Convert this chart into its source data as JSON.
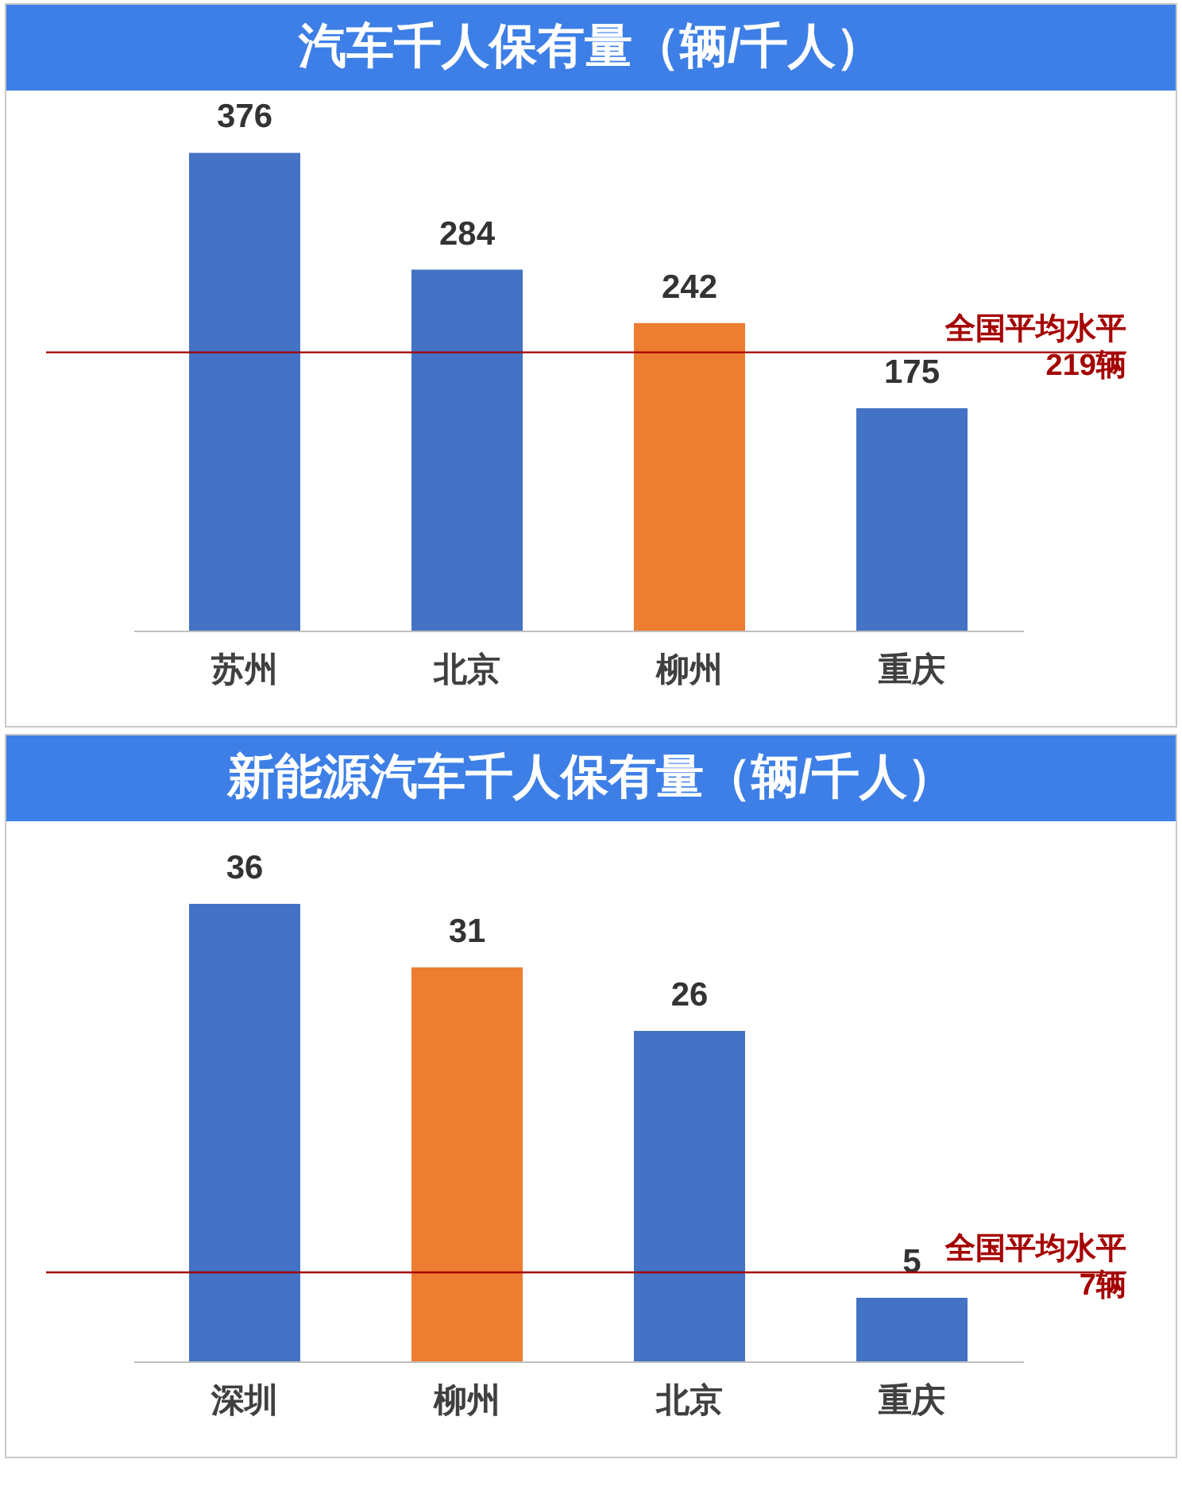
{
  "chart_data": [
    {
      "type": "bar",
      "title": "汽车千人保有量（辆/千人）",
      "categories": [
        "苏州",
        "北京",
        "柳州",
        "重庆"
      ],
      "values": [
        376,
        284,
        242,
        175
      ],
      "colors": [
        "#4472c4",
        "#4472c4",
        "#ed7d31",
        "#4472c4"
      ],
      "data_labels": true,
      "ref_lines": [
        {
          "axis": "y",
          "value": 219,
          "label": "全国平均水平\n219辆",
          "color": "#a50000"
        }
      ]
    },
    {
      "type": "bar",
      "title": "新能源汽车千人保有量（辆/千人）",
      "categories": [
        "深圳",
        "柳州",
        "北京",
        "重庆"
      ],
      "values": [
        36,
        31,
        26,
        5
      ],
      "colors": [
        "#4472c4",
        "#ed7d31",
        "#4472c4",
        "#4472c4"
      ],
      "data_labels": true,
      "ref_lines": [
        {
          "axis": "y",
          "value": 7,
          "label": "全国平均水平\n7辆",
          "color": "#a50000"
        }
      ]
    }
  ]
}
